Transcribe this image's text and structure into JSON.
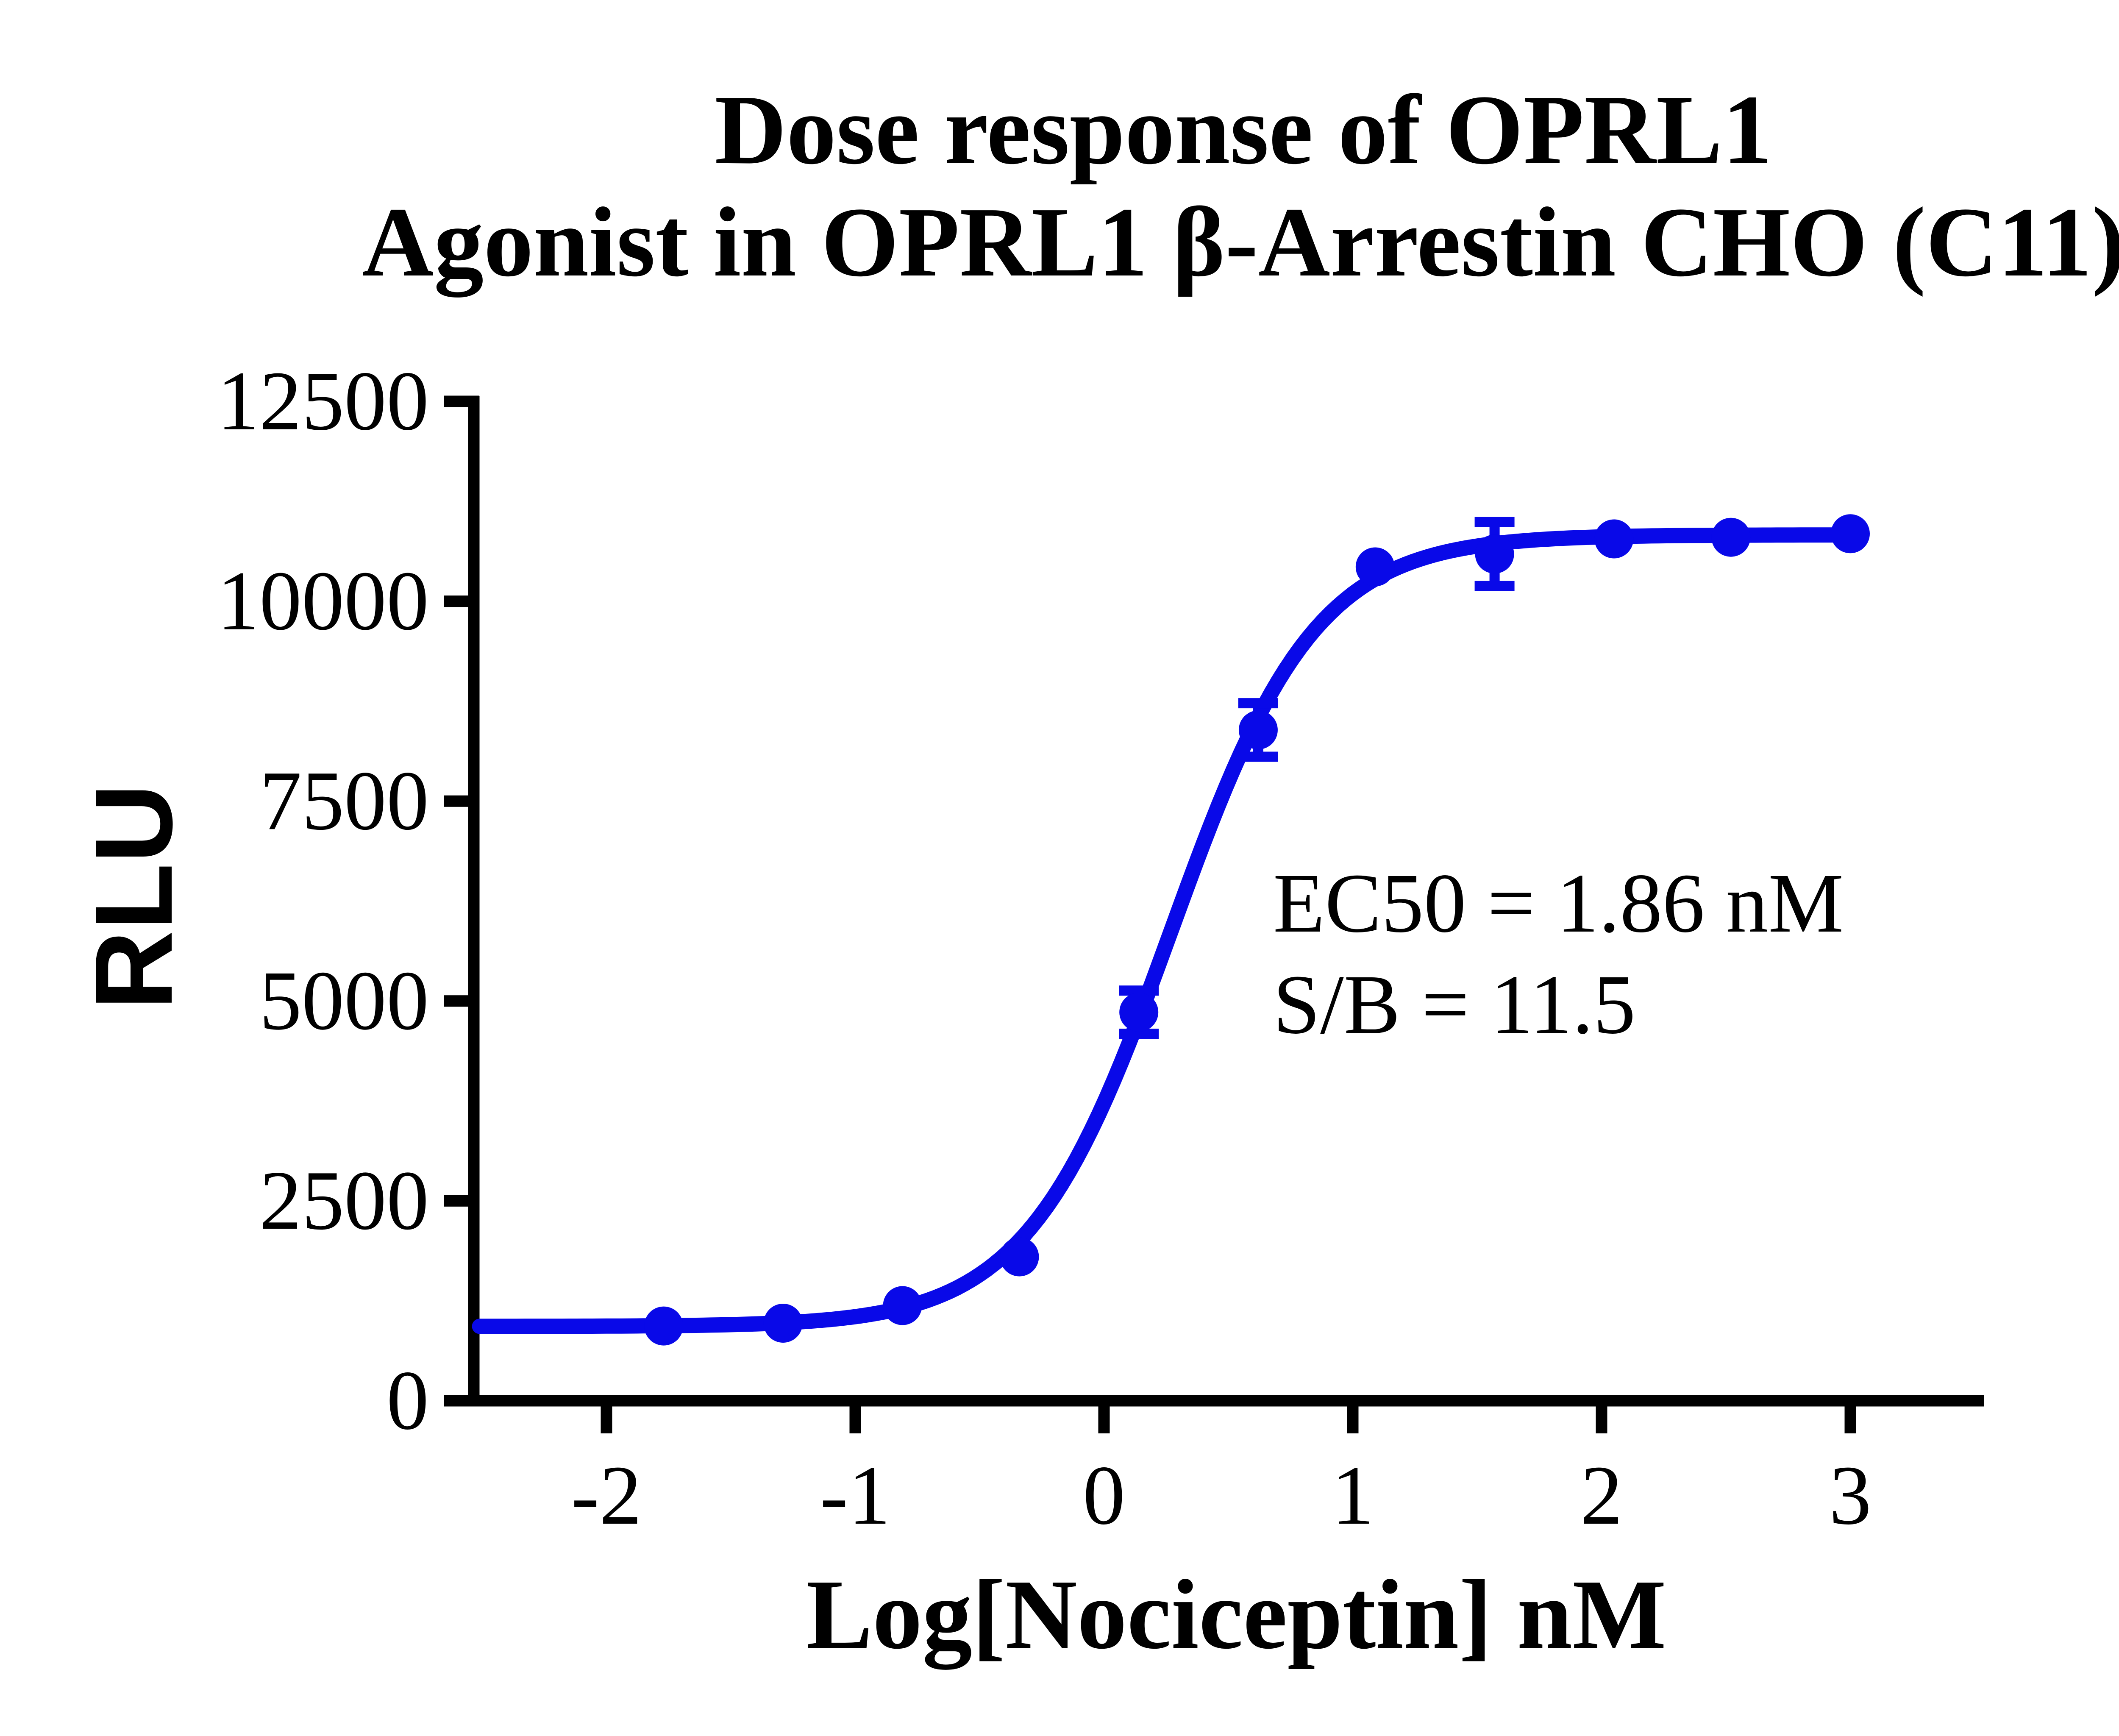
{
  "title": {
    "line1": "Dose response of OPRL1",
    "line2": "Agonist in OPRL1 β-Arrestin CHO (C11)"
  },
  "y_axis": {
    "label": "RLU",
    "ticks": [
      0,
      2500,
      5000,
      7500,
      10000,
      12500
    ]
  },
  "x_axis": {
    "label": "Log[Nociceptin] nM",
    "ticks": [
      -2,
      -1,
      0,
      1,
      2,
      3
    ]
  },
  "annotation": {
    "line1": "EC50 = 1.86 nM",
    "line2": "S/B = 11.5"
  },
  "colors": {
    "series": "#0909E8",
    "axis": "#000000",
    "text": "#000000",
    "background": "#FFFFFF"
  },
  "chart_data": {
    "type": "scatter",
    "title": "Dose response of OPRL1 Agonist in OPRL1 β-Arrestin CHO (C11)",
    "xlabel": "Log[Nociceptin] nM",
    "ylabel": "RLU",
    "xlim": [
      -2.51,
      3.54
    ],
    "ylim": [
      0,
      12500
    ],
    "grid": false,
    "legend": "none",
    "x": [
      -1.77,
      -1.29,
      -0.81,
      -0.34,
      0.14,
      0.62,
      1.09,
      1.57,
      2.05,
      2.52,
      3.0
    ],
    "y": [
      935,
      970,
      1190,
      1800,
      4860,
      8390,
      10430,
      10590,
      10780,
      10800,
      10845
    ],
    "y_err": [
      0,
      0,
      0,
      0,
      270,
      335,
      0,
      400,
      0,
      0,
      0
    ],
    "fit": {
      "model": "4-parameter logistic",
      "bottom": 930,
      "top": 10830,
      "logEC50": 0.27,
      "hill": 1.5,
      "curve_domain": [
        -2.51,
        3.0
      ],
      "ec50_nM": 1.86,
      "s_over_b": 11.5
    }
  }
}
